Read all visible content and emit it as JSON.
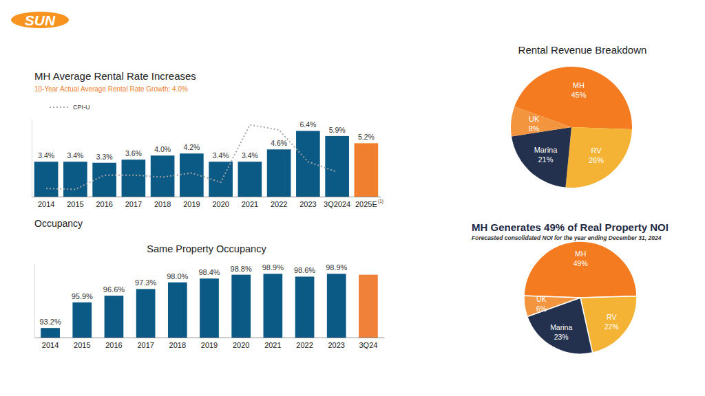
{
  "page": {
    "logo": "SUN",
    "section": "Occupancy"
  },
  "chart_data": [
    {
      "type": "bar",
      "title": "MH Average Rental Rate Increases",
      "subtitle": "10-Year Actual Average Rental Rate Growth: 4.0%",
      "categories": [
        "2014",
        "2015",
        "2016",
        "2017",
        "2018",
        "2019",
        "2020",
        "2021",
        "2022",
        "2023",
        "3Q2024",
        "2025E"
      ],
      "series": [
        {
          "type": "bar",
          "colors": [
            "#0b5a86",
            "#0b5a86",
            "#0b5a86",
            "#0b5a86",
            "#0b5a86",
            "#0b5a86",
            "#0b5a86",
            "#0b5a86",
            "#0b5a86",
            "#0b5a86",
            "#0b5a86",
            "#f07f2f"
          ],
          "values": [
            3.4,
            3.4,
            3.3,
            3.6,
            4.0,
            4.2,
            3.4,
            3.4,
            4.6,
            6.4,
            5.9,
            5.2
          ],
          "value_labels": [
            "3.4%",
            "3.4%",
            "3.3%",
            "3.6%",
            "4.0%",
            "4.2%",
            "3.4%",
            "3.4%",
            "4.6%",
            "6.4%",
            "5.9%",
            "5.2%"
          ]
        },
        {
          "name": "CPI-U",
          "type": "line",
          "color": "#a6a6a6",
          "line_style": "dotted",
          "values": [
            0.8,
            0.7,
            2.1,
            2.1,
            1.9,
            2.3,
            1.4,
            7.0,
            6.5,
            3.4,
            2.4,
            null
          ]
        }
      ],
      "ylim": [
        0,
        7.5
      ],
      "data_labels": true,
      "tick_labels": "x",
      "legend": "upper left",
      "annotations": [
        "(1)"
      ]
    },
    {
      "type": "bar",
      "title": "Same Property Occupancy",
      "categories": [
        "2014",
        "2015",
        "2016",
        "2017",
        "2018",
        "2019",
        "2020",
        "2021",
        "2022",
        "2023",
        "3Q24"
      ],
      "values": [
        93.2,
        95.9,
        96.6,
        97.3,
        98.0,
        98.4,
        98.8,
        98.9,
        98.6,
        98.9,
        98.8
      ],
      "value_labels": [
        "93.2%",
        "95.9%",
        "96.6%",
        "97.3%",
        "98.0%",
        "98.4%",
        "98.8%",
        "98.9%",
        "98.6%",
        "98.9%",
        null
      ],
      "colors": [
        "#0b5a86",
        "#0b5a86",
        "#0b5a86",
        "#0b5a86",
        "#0b5a86",
        "#0b5a86",
        "#0b5a86",
        "#0b5a86",
        "#0b5a86",
        "#0b5a86",
        "#f0813a"
      ],
      "ylim": [
        92.2,
        100
      ],
      "data_labels": true,
      "tick_labels": "x"
    },
    {
      "type": "pie",
      "title": "Rental Revenue Breakdown",
      "categories": [
        "MH",
        "RV",
        "Marina",
        "UK"
      ],
      "values": [
        45,
        26,
        21,
        8
      ],
      "value_labels": [
        "45%",
        "26%",
        "21%",
        "8%"
      ],
      "colors": [
        "#f47b20",
        "#f5b335",
        "#23304e",
        "#f3953f"
      ],
      "data_labels": true
    },
    {
      "type": "pie",
      "title": "MH Generates 49% of Real Property NOI",
      "subtitle": "Forecasted consolidated NOI for the year ending December 31, 2024",
      "categories": [
        "MH",
        "RV",
        "Marina",
        "UK"
      ],
      "values": [
        49,
        22,
        23,
        6
      ],
      "value_labels": [
        "49%",
        "22%",
        "23%",
        "6%"
      ],
      "colors": [
        "#f47b20",
        "#f5b335",
        "#23304e",
        "#f3953f"
      ],
      "data_labels": true
    }
  ]
}
